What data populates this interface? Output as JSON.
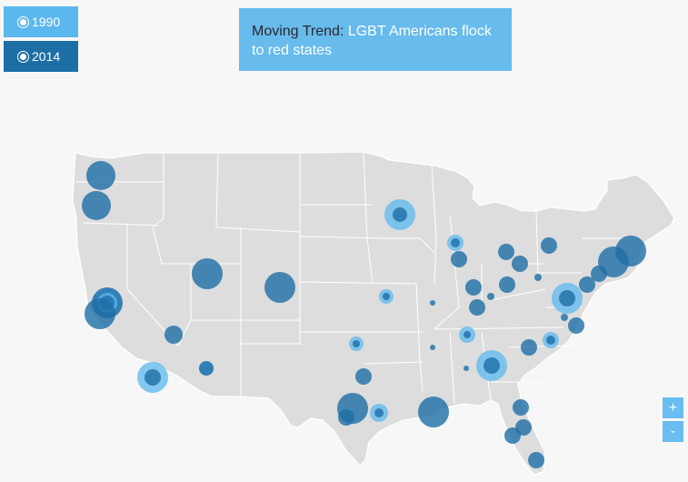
{
  "controls": {
    "year_1990": "1990",
    "year_2014": "2014",
    "selected_year": "2014"
  },
  "title": {
    "prefix": "Moving Trend: ",
    "highlight": "LGBT Americans flock to red states"
  },
  "zoom": {
    "in_label": "+",
    "out_label": "-"
  },
  "colors": {
    "land": "#dddddd",
    "border": "#ffffff",
    "bubble_1990": "#5bb8ee",
    "bubble_2014": "#1e6ea6",
    "title_bg": "#67bbed",
    "accent_text": "#ffffff"
  },
  "bubbles": [
    {
      "place": "Seattle",
      "size_2014": 16
    },
    {
      "place": "Portland",
      "size_2014": 16
    },
    {
      "place": "San Francisco",
      "size_1990": 16,
      "size_2014": 17
    },
    {
      "place": "Sacramento",
      "size_1990": 11,
      "size_2014": 8
    },
    {
      "place": "Los Angeles",
      "size_2014": 17
    },
    {
      "place": "San Diego",
      "size_1990": 17,
      "size_2014": 9
    },
    {
      "place": "Las Vegas",
      "size_2014": 10
    },
    {
      "place": "Phoenix",
      "size_1990": 8,
      "size_2014": 8
    },
    {
      "place": "Salt Lake City",
      "size_2014": 17
    },
    {
      "place": "Denver",
      "size_2014": 17
    },
    {
      "place": "Minneapolis",
      "size_1990": 17,
      "size_2014": 8
    },
    {
      "place": "Kansas City",
      "size_1990": 8,
      "size_2014": 4
    },
    {
      "place": "Oklahoma City",
      "size_1990": 8,
      "size_2014": 4
    },
    {
      "place": "Dallas",
      "size_2014": 9
    },
    {
      "place": "Austin",
      "size_2014": 17
    },
    {
      "place": "San Antonio",
      "size_2014": 9
    },
    {
      "place": "Houston",
      "size_1990": 10,
      "size_2014": 5
    },
    {
      "place": "New Orleans",
      "size_2014": 17
    },
    {
      "place": "St. Louis",
      "size_2014": 3
    },
    {
      "place": "Memphis",
      "size_2014": 3
    },
    {
      "place": "Milwaukee",
      "size_1990": 9,
      "size_2014": 5
    },
    {
      "place": "Chicago",
      "size_2014": 9
    },
    {
      "place": "Indianapolis",
      "size_2014": 9
    },
    {
      "place": "Louisville",
      "size_2014": 9
    },
    {
      "place": "Nashville",
      "size_1990": 9,
      "size_2014": 4
    },
    {
      "place": "Birmingham",
      "size_2014": 3
    },
    {
      "place": "Atlanta",
      "size_1990": 17,
      "size_2014": 9
    },
    {
      "place": "Detroit",
      "size_2014": 9
    },
    {
      "place": "Cleveland",
      "size_2014": 9
    },
    {
      "place": "Columbus",
      "size_2014": 9
    },
    {
      "place": "Cincinnati",
      "size_2014": 4
    },
    {
      "place": "Pittsburgh",
      "size_2014": 4
    },
    {
      "place": "Buffalo",
      "size_2014": 9
    },
    {
      "place": "Washington DC",
      "size_1990": 17,
      "size_2014": 9
    },
    {
      "place": "Baltimore",
      "size_2014": 9
    },
    {
      "place": "Philadelphia",
      "size_2014": 9
    },
    {
      "place": "New York",
      "size_2014": 17
    },
    {
      "place": "Boston",
      "size_2014": 17
    },
    {
      "place": "Richmond",
      "size_2014": 4
    },
    {
      "place": "Raleigh",
      "size_2014": 9
    },
    {
      "place": "Charlotte",
      "size_1990": 9,
      "size_2014": 5
    },
    {
      "place": "Columbia",
      "size_2014": 9
    },
    {
      "place": "Jacksonville",
      "size_2014": 9
    },
    {
      "place": "Orlando",
      "size_2014": 9
    },
    {
      "place": "Tampa",
      "size_2014": 9
    },
    {
      "place": "Miami",
      "size_2014": 9
    }
  ]
}
